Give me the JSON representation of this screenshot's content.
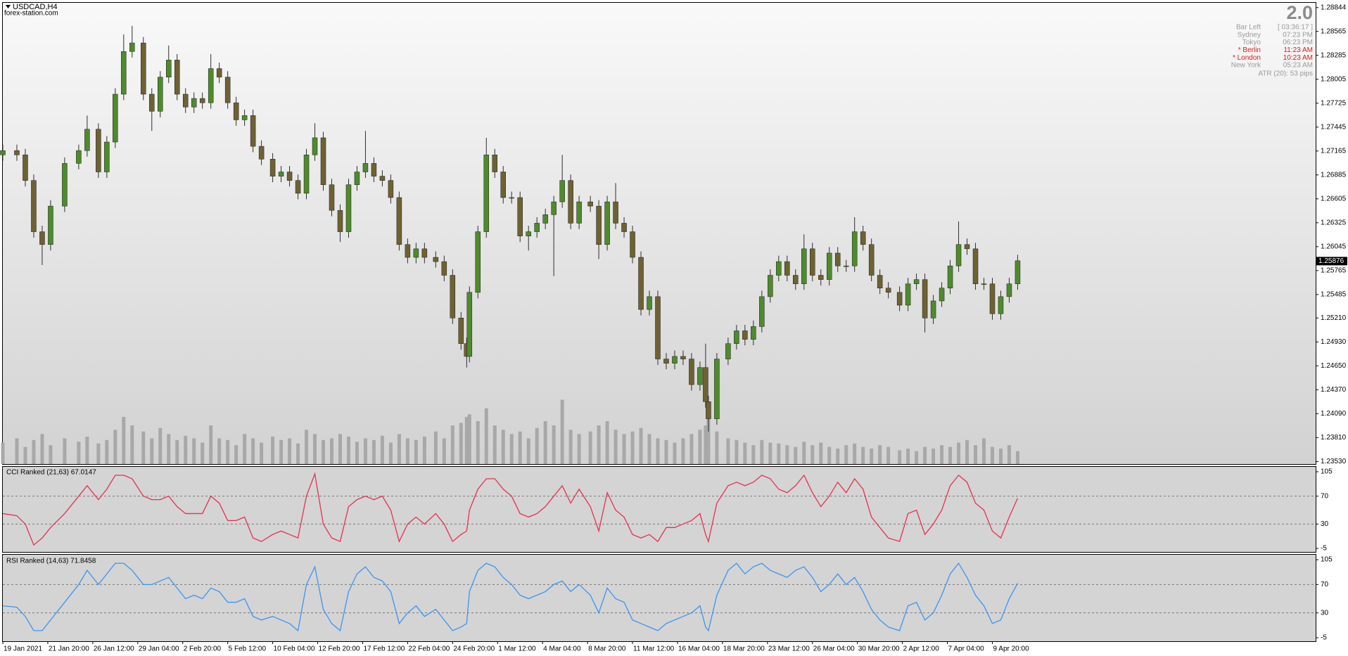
{
  "header": {
    "title": "USDCAD,H4",
    "site": "forex-station.com"
  },
  "info": {
    "version": "2.0",
    "rows": [
      {
        "label": "Bar Left",
        "value": "[ 03:36:17 ]",
        "color": "#9a9a9a"
      },
      {
        "label": "Sydney",
        "value": "07:23 PM",
        "color": "#9a9a9a"
      },
      {
        "label": "Tokyo",
        "value": "06:23 PM",
        "color": "#9a9a9a"
      },
      {
        "label": "* Berlin",
        "value": "11:23 AM",
        "color": "#e01818"
      },
      {
        "label": "* London",
        "value": "10:23 AM",
        "color": "#e01818"
      },
      {
        "label": "New York",
        "value": "05:23 AM",
        "color": "#9a9a9a"
      }
    ],
    "atr": "ATR (20): 53 pips"
  },
  "chart_data": [
    {
      "type": "candlestick",
      "xlim": [
        0,
        467
      ],
      "ylim": [
        1.235,
        1.289
      ],
      "up_color": "#4f8a2c",
      "down_color": "#6e6233",
      "volume_color": "#a8a8a8",
      "last_price": 1.25876,
      "yticks": [
        1.28844,
        1.28565,
        1.28285,
        1.28005,
        1.27725,
        1.27445,
        1.27165,
        1.26885,
        1.26605,
        1.26325,
        1.26045,
        1.25765,
        1.25485,
        {
          "value": 1.2521,
          "label": "1.25210"
        },
        {
          "value": 1.2493,
          "label": "1.24930"
        },
        {
          "value": 1.2465,
          "label": "1.24650"
        },
        {
          "value": 1.2437,
          "label": "1.24370"
        },
        {
          "value": 1.2409,
          "label": "1.24090"
        },
        {
          "value": 1.2381,
          "label": "1.23810"
        },
        {
          "value": 1.2353,
          "label": "1.23530"
        }
      ],
      "x": [
        0,
        5,
        8,
        11,
        14,
        17,
        22,
        27,
        30,
        34,
        37,
        40,
        43,
        46,
        50,
        53,
        56,
        59,
        62,
        65,
        68,
        71,
        74,
        77,
        80,
        83,
        86,
        89,
        92,
        96,
        99,
        102,
        105,
        108,
        111,
        114,
        117,
        120,
        123,
        126,
        129,
        132,
        135,
        138,
        141,
        144,
        147,
        150,
        154,
        157,
        160,
        163,
        165,
        166,
        169,
        172,
        175,
        178,
        181,
        184,
        187,
        190,
        193,
        196,
        199,
        202,
        205,
        209,
        212,
        215,
        218,
        221,
        224,
        227,
        230,
        233,
        236,
        239,
        242,
        245,
        248,
        250,
        251,
        254,
        258,
        261,
        264,
        267,
        270,
        273,
        276,
        279,
        282,
        285,
        288,
        291,
        294,
        297,
        300,
        303,
        306,
        309,
        312,
        315,
        319,
        322,
        325,
        328,
        331,
        334,
        337,
        340,
        343,
        346,
        349,
        352,
        355,
        358,
        361
      ],
      "open": [
        1.2712,
        1.2717,
        1.2712,
        1.2682,
        1.2622,
        1.2607,
        1.2652,
        1.2702,
        1.2717,
        1.2742,
        1.2692,
        1.2727,
        1.2783,
        1.2833,
        1.2843,
        1.2783,
        1.2763,
        1.2803,
        1.2823,
        1.2783,
        1.2768,
        1.2778,
        1.2773,
        1.2813,
        1.2803,
        1.2773,
        1.2753,
        1.2758,
        1.2722,
        1.2707,
        1.2687,
        1.2692,
        1.2682,
        1.2667,
        1.2712,
        1.2732,
        1.2677,
        1.2647,
        1.2622,
        1.2677,
        1.2692,
        1.2702,
        1.2687,
        1.2682,
        1.2662,
        1.2607,
        1.2592,
        1.2602,
        1.2592,
        1.2587,
        1.2571,
        1.2521,
        1.2491,
        1.2476,
        1.2551,
        1.2622,
        1.2712,
        1.2692,
        1.2662,
        1.2662,
        1.2617,
        1.2622,
        1.2632,
        1.2642,
        1.2657,
        1.2682,
        1.2632,
        1.2657,
        1.2652,
        1.2607,
        1.2657,
        1.2632,
        1.2622,
        1.2592,
        1.2531,
        1.2546,
        1.2473,
        1.2468,
        1.2476,
        1.2473,
        1.2443,
        1.2463,
        1.2423,
        1.2403,
        1.2473,
        1.2491,
        1.2506,
        1.2496,
        1.2511,
        1.2546,
        1.2571,
        1.2587,
        1.2571,
        1.2561,
        1.2602,
        1.2571,
        1.2566,
        1.2597,
        1.2582,
        1.2582,
        1.2622,
        1.2607,
        1.2571,
        1.2556,
        1.2551,
        1.2536,
        1.2561,
        1.2566,
        1.2521,
        1.2541,
        1.2556,
        1.2582,
        1.2607,
        1.2602,
        1.2561,
        1.2561,
        1.2526,
        1.2546,
        1.2561
      ],
      "high": [
        1.2724,
        1.2724,
        1.2719,
        1.2689,
        1.2629,
        1.2659,
        1.2709,
        1.2724,
        1.2758,
        1.2749,
        1.2734,
        1.279,
        1.2853,
        1.2863,
        1.285,
        1.279,
        1.281,
        1.284,
        1.283,
        1.279,
        1.2785,
        1.2785,
        1.283,
        1.282,
        1.281,
        1.278,
        1.2765,
        1.2765,
        1.2729,
        1.2714,
        1.2699,
        1.2699,
        1.2689,
        1.2719,
        1.2749,
        1.2739,
        1.2684,
        1.2654,
        1.2684,
        1.2699,
        1.274,
        1.2709,
        1.2694,
        1.2689,
        1.2669,
        1.2614,
        1.2609,
        1.2609,
        1.2599,
        1.2594,
        1.2578,
        1.2528,
        1.2498,
        1.2558,
        1.2629,
        1.2732,
        1.2719,
        1.2699,
        1.2669,
        1.2669,
        1.2629,
        1.2639,
        1.2649,
        1.2664,
        1.2712,
        1.2689,
        1.2664,
        1.2664,
        1.2659,
        1.2664,
        1.2679,
        1.2639,
        1.2629,
        1.2599,
        1.2553,
        1.2553,
        1.248,
        1.2483,
        1.2483,
        1.248,
        1.247,
        1.2491,
        1.243,
        1.248,
        1.2498,
        1.2513,
        1.2513,
        1.2518,
        1.2553,
        1.2578,
        1.2594,
        1.2594,
        1.2578,
        1.2619,
        1.2609,
        1.2578,
        1.2604,
        1.2604,
        1.2589,
        1.2639,
        1.2629,
        1.2614,
        1.2578,
        1.2563,
        1.2558,
        1.2568,
        1.2573,
        1.2573,
        1.2548,
        1.2563,
        1.2589,
        1.2634,
        1.2614,
        1.2609,
        1.2568,
        1.2568,
        1.2553,
        1.2568,
        1.2595
      ],
      "low": [
        1.2705,
        1.2705,
        1.2675,
        1.2615,
        1.2583,
        1.26,
        1.2645,
        1.2695,
        1.271,
        1.2685,
        1.2685,
        1.272,
        1.2776,
        1.2826,
        1.2776,
        1.274,
        1.2756,
        1.2796,
        1.2776,
        1.2761,
        1.2761,
        1.2766,
        1.2766,
        1.2796,
        1.2766,
        1.2746,
        1.2746,
        1.2715,
        1.27,
        1.268,
        1.268,
        1.2675,
        1.266,
        1.266,
        1.2705,
        1.267,
        1.264,
        1.261,
        1.2615,
        1.267,
        1.2685,
        1.268,
        1.2675,
        1.2655,
        1.26,
        1.2585,
        1.2585,
        1.2585,
        1.258,
        1.2564,
        1.2514,
        1.2484,
        1.2463,
        1.2469,
        1.2544,
        1.2615,
        1.2685,
        1.2655,
        1.2655,
        1.261,
        1.26,
        1.2615,
        1.2625,
        1.257,
        1.265,
        1.2625,
        1.2625,
        1.2645,
        1.259,
        1.26,
        1.2625,
        1.2615,
        1.2585,
        1.2524,
        1.2524,
        1.2466,
        1.2461,
        1.2461,
        1.2466,
        1.2436,
        1.2436,
        1.2416,
        1.2388,
        1.2396,
        1.2466,
        1.2484,
        1.2489,
        1.2489,
        1.2504,
        1.2539,
        1.2564,
        1.2564,
        1.2554,
        1.2554,
        1.2564,
        1.2559,
        1.2559,
        1.2575,
        1.2575,
        1.2575,
        1.26,
        1.2564,
        1.2549,
        1.2544,
        1.2529,
        1.2529,
        1.2554,
        1.2504,
        1.2514,
        1.2534,
        1.2549,
        1.2575,
        1.2595,
        1.2554,
        1.2554,
        1.2519,
        1.2519,
        1.2539,
        1.2554
      ],
      "close": [
        1.2717,
        1.2712,
        1.2682,
        1.2622,
        1.2607,
        1.2652,
        1.2702,
        1.2717,
        1.2742,
        1.2692,
        1.2727,
        1.2783,
        1.2833,
        1.2843,
        1.2783,
        1.2763,
        1.2803,
        1.2823,
        1.2783,
        1.2768,
        1.2778,
        1.2773,
        1.2813,
        1.2803,
        1.2773,
        1.2753,
        1.2758,
        1.2722,
        1.2707,
        1.2687,
        1.2692,
        1.2682,
        1.2667,
        1.2712,
        1.2732,
        1.2677,
        1.2647,
        1.2622,
        1.2677,
        1.2692,
        1.2702,
        1.2687,
        1.2682,
        1.2662,
        1.2607,
        1.2592,
        1.2602,
        1.2592,
        1.2587,
        1.2571,
        1.2521,
        1.2491,
        1.2476,
        1.2551,
        1.2622,
        1.2712,
        1.2692,
        1.2662,
        1.2662,
        1.2617,
        1.2622,
        1.2632,
        1.2642,
        1.2657,
        1.2682,
        1.2632,
        1.2657,
        1.2652,
        1.2607,
        1.2657,
        1.2632,
        1.2622,
        1.2592,
        1.2531,
        1.2546,
        1.2473,
        1.2468,
        1.2476,
        1.2473,
        1.2443,
        1.2463,
        1.2423,
        1.2403,
        1.2473,
        1.2491,
        1.2506,
        1.2496,
        1.2511,
        1.2546,
        1.2571,
        1.2587,
        1.2571,
        1.2561,
        1.2602,
        1.2571,
        1.2566,
        1.2597,
        1.2582,
        1.2582,
        1.2622,
        1.2607,
        1.2571,
        1.2556,
        1.2551,
        1.2536,
        1.2561,
        1.2566,
        1.2521,
        1.2541,
        1.2556,
        1.2582,
        1.2607,
        1.2602,
        1.2561,
        1.2561,
        1.2526,
        1.2546,
        1.2561,
        1.2588
      ],
      "volume": [
        25,
        30,
        20,
        28,
        35,
        22,
        30,
        26,
        32,
        24,
        28,
        40,
        55,
        45,
        38,
        30,
        42,
        35,
        28,
        33,
        30,
        25,
        45,
        30,
        28,
        22,
        35,
        30,
        25,
        32,
        28,
        30,
        24,
        40,
        35,
        28,
        30,
        35,
        32,
        26,
        30,
        28,
        33,
        25,
        35,
        30,
        28,
        32,
        38,
        30,
        45,
        48,
        55,
        58,
        50,
        65,
        45,
        40,
        35,
        38,
        30,
        42,
        50,
        45,
        75,
        40,
        35,
        38,
        45,
        50,
        40,
        35,
        38,
        42,
        35,
        30,
        28,
        25,
        30,
        35,
        40,
        45,
        55,
        38,
        30,
        28,
        25,
        22,
        28,
        25,
        24,
        22,
        20,
        26,
        22,
        25,
        20,
        18,
        22,
        24,
        20,
        18,
        22,
        20,
        16,
        18,
        15,
        20,
        18,
        22,
        20,
        25,
        28,
        22,
        30,
        20,
        18,
        22,
        15
      ]
    },
    {
      "type": "line",
      "title": "CCI Ranked (21,63) 67.0147",
      "color": "#e5314f",
      "ylim": [
        -10,
        112
      ],
      "yticks": [
        105,
        70,
        30,
        -5
      ],
      "levels": [
        70,
        30
      ],
      "values": [
        45,
        42,
        30,
        0,
        10,
        25,
        45,
        70,
        85,
        65,
        80,
        100,
        100,
        95,
        70,
        65,
        65,
        70,
        55,
        45,
        45,
        45,
        70,
        60,
        35,
        35,
        40,
        10,
        5,
        15,
        20,
        15,
        10,
        70,
        102,
        30,
        10,
        5,
        55,
        65,
        70,
        65,
        70,
        50,
        5,
        30,
        40,
        30,
        45,
        30,
        5,
        15,
        20,
        50,
        80,
        95,
        95,
        80,
        70,
        45,
        40,
        45,
        55,
        70,
        85,
        60,
        80,
        55,
        20,
        75,
        50,
        40,
        15,
        10,
        15,
        5,
        25,
        25,
        30,
        35,
        45,
        15,
        5,
        60,
        85,
        90,
        85,
        90,
        100,
        95,
        80,
        75,
        85,
        100,
        75,
        55,
        70,
        90,
        75,
        95,
        80,
        40,
        25,
        10,
        5,
        45,
        50,
        15,
        30,
        50,
        85,
        100,
        90,
        60,
        50,
        20,
        10,
        40,
        67.0147
      ]
    },
    {
      "type": "line",
      "title": "RSI Ranked (14,63) 71.8458",
      "color": "#3d94f0",
      "ylim": [
        -10,
        112
      ],
      "yticks": [
        105,
        70,
        30,
        -5
      ],
      "levels": [
        70,
        30
      ],
      "values": [
        40,
        38,
        25,
        5,
        5,
        20,
        45,
        70,
        90,
        70,
        85,
        100,
        100,
        90,
        70,
        70,
        75,
        80,
        65,
        50,
        55,
        50,
        65,
        60,
        45,
        45,
        50,
        25,
        20,
        25,
        20,
        15,
        5,
        70,
        95,
        35,
        15,
        5,
        60,
        85,
        95,
        80,
        75,
        60,
        15,
        30,
        40,
        25,
        35,
        20,
        5,
        10,
        15,
        60,
        90,
        100,
        95,
        80,
        70,
        55,
        50,
        55,
        60,
        70,
        75,
        60,
        70,
        55,
        30,
        65,
        50,
        45,
        20,
        15,
        10,
        5,
        15,
        20,
        25,
        30,
        40,
        10,
        5,
        55,
        90,
        100,
        85,
        95,
        100,
        90,
        85,
        80,
        90,
        95,
        80,
        60,
        70,
        85,
        70,
        80,
        60,
        35,
        20,
        10,
        5,
        40,
        45,
        20,
        30,
        55,
        85,
        100,
        80,
        55,
        40,
        15,
        20,
        50,
        71.8458
      ],
      "xticks": [
        {
          "value": 0,
          "label": "19 Jan 2021"
        },
        {
          "value": 16,
          "label": "21 Jan 20:00"
        },
        {
          "value": 32,
          "label": "26 Jan 12:00"
        },
        {
          "value": 48,
          "label": "29 Jan 04:00"
        },
        {
          "value": 64,
          "label": "2 Feb 20:00"
        },
        {
          "value": 80,
          "label": "5 Feb 12:00"
        },
        {
          "value": 96,
          "label": "10 Feb 04:00"
        },
        {
          "value": 112,
          "label": "12 Feb 20:00"
        },
        {
          "value": 128,
          "label": "17 Feb 12:00"
        },
        {
          "value": 144,
          "label": "22 Feb 04:00"
        },
        {
          "value": 160,
          "label": "24 Feb 20:00"
        },
        {
          "value": 176,
          "label": "1 Mar 12:00"
        },
        {
          "value": 192,
          "label": "4 Mar 04:00"
        },
        {
          "value": 208,
          "label": "8 Mar 20:00"
        },
        {
          "value": 224,
          "label": "11 Mar 12:00"
        },
        {
          "value": 240,
          "label": "16 Mar 04:00"
        },
        {
          "value": 256,
          "label": "18 Mar 20:00"
        },
        {
          "value": 272,
          "label": "23 Mar 12:00"
        },
        {
          "value": 288,
          "label": "26 Mar 04:00"
        },
        {
          "value": 304,
          "label": "30 Mar 20:00"
        },
        {
          "value": 320,
          "label": "2 Apr 12:00"
        },
        {
          "value": 336,
          "label": "7 Apr 04:00"
        },
        {
          "value": 352,
          "label": "9 Apr 20:00"
        }
      ]
    }
  ]
}
